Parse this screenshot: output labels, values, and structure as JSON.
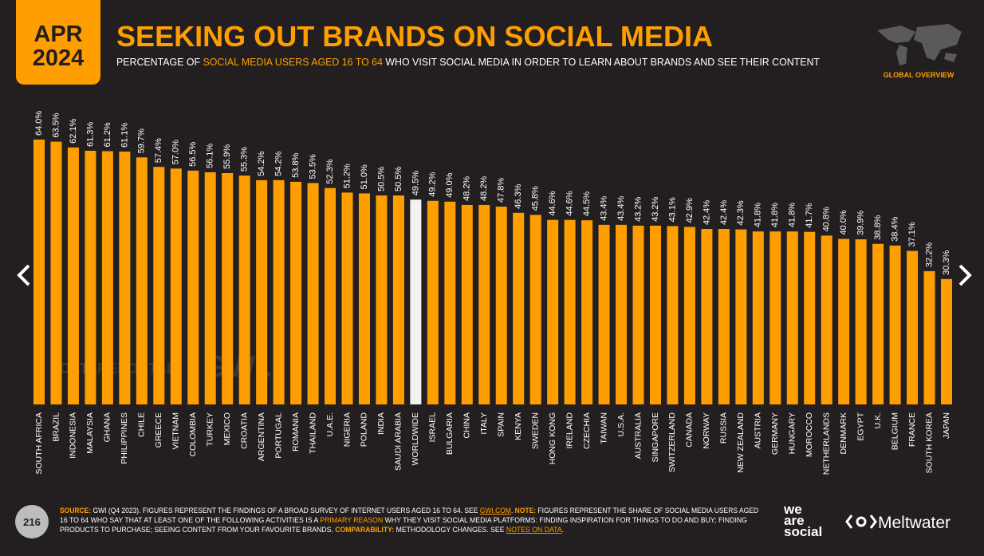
{
  "badge": {
    "month": "APR",
    "year": "2024"
  },
  "global_label": "GLOBAL OVERVIEW",
  "page_number": "216",
  "watermarks": [
    "DATAREPORTAL",
    "GWI."
  ],
  "logos": {
    "wearesocial": [
      "we",
      "are",
      "social"
    ],
    "meltwater": "Meltwater"
  },
  "footer": {
    "lines": [
      [
        {
          "text": "SOURCE:",
          "style": "label"
        },
        {
          "text": " GWI (Q4 2023). FIGURES REPRESENT THE FINDINGS OF A BROAD SURVEY OF INTERNET USERS AGED 16 TO 64. SEE ",
          "style": "plain"
        },
        {
          "text": "GWI.COM",
          "style": "link"
        },
        {
          "text": ". ",
          "style": "plain"
        },
        {
          "text": "NOTE:",
          "style": "label"
        },
        {
          "text": " FIGURES REPRESENT THE SHARE OF SOCIAL MEDIA USERS AGED",
          "style": "plain"
        }
      ],
      [
        {
          "text": "16 TO 64 WHO SAY THAT AT LEAST ONE OF THE FOLLOWING ACTIVITIES IS A ",
          "style": "plain"
        },
        {
          "text": "PRIMARY REASON",
          "style": "highlight"
        },
        {
          "text": " WHY THEY VISIT SOCIAL MEDIA PLATFORMS: FINDING INSPIRATION FOR THINGS TO DO AND BUY; FINDING",
          "style": "plain"
        }
      ],
      [
        {
          "text": "PRODUCTS TO PURCHASE; SEEING CONTENT FROM YOUR FAVOURITE BRANDS. ",
          "style": "plain"
        },
        {
          "text": "COMPARABILITY:",
          "style": "label"
        },
        {
          "text": " METHODOLOGY CHANGES. SEE ",
          "style": "plain"
        },
        {
          "text": "NOTES ON DATA",
          "style": "link"
        },
        {
          "text": ".",
          "style": "plain"
        }
      ]
    ]
  },
  "chart_data": {
    "type": "bar",
    "title": "SEEKING OUT BRANDS ON SOCIAL MEDIA",
    "subtitle": [
      {
        "text": "PERCENTAGE OF ",
        "style": "plain"
      },
      {
        "text": "SOCIAL MEDIA USERS AGED 16 TO 64",
        "style": "highlight"
      },
      {
        "text": " WHO VISIT SOCIAL MEDIA IN ORDER TO LEARN ABOUT BRANDS AND SEE THEIR CONTENT",
        "style": "plain"
      }
    ],
    "categories": [
      "SOUTH AFRICA",
      "BRAZIL",
      "INDONESIA",
      "MALAYSIA",
      "GHANA",
      "PHILIPPINES",
      "CHILE",
      "GREECE",
      "VIETNAM",
      "COLOMBIA",
      "TURKEY",
      "MEXICO",
      "CROATIA",
      "ARGENTINA",
      "PORTUGAL",
      "ROMANIA",
      "THAILAND",
      "U.A.E.",
      "NIGERIA",
      "POLAND",
      "INDIA",
      "SAUDI ARABIA",
      "WORLDWIDE",
      "ISRAEL",
      "BULGARIA",
      "CHINA",
      "ITALY",
      "SPAIN",
      "KENYA",
      "SWEDEN",
      "HONG KONG",
      "IRELAND",
      "CZECHIA",
      "TAIWAN",
      "U.S.A.",
      "AUSTRALIA",
      "SINGAPORE",
      "SWITZERLAND",
      "CANADA",
      "NORWAY",
      "RUSSIA",
      "NEW ZEALAND",
      "AUSTRIA",
      "GERMANY",
      "HUNGARY",
      "MOROCCO",
      "NETHERLANDS",
      "DENMARK",
      "EGYPT",
      "U.K.",
      "BELGIUM",
      "FRANCE",
      "SOUTH KOREA",
      "JAPAN"
    ],
    "values": [
      64.0,
      63.5,
      62.1,
      61.3,
      61.2,
      61.1,
      59.7,
      57.4,
      57.0,
      56.5,
      56.1,
      55.9,
      55.3,
      54.2,
      54.2,
      53.8,
      53.5,
      52.3,
      51.2,
      51.0,
      50.5,
      50.5,
      49.5,
      49.2,
      49.0,
      48.2,
      48.2,
      47.8,
      46.3,
      45.8,
      44.6,
      44.6,
      44.5,
      43.4,
      43.4,
      43.2,
      43.2,
      43.1,
      42.9,
      42.4,
      42.4,
      42.3,
      41.8,
      41.8,
      41.8,
      41.7,
      40.8,
      40.0,
      39.9,
      38.8,
      38.4,
      37.1,
      32.2,
      30.3
    ],
    "value_labels": [
      "64.0%",
      "63.5%",
      "62.1%",
      "61.3%",
      "61.2%",
      "61.1%",
      "59.7%",
      "57.4%",
      "57.0%",
      "56.5%",
      "56.1%",
      "55.9%",
      "55.3%",
      "54.2%",
      "54.2%",
      "53.8%",
      "53.5%",
      "52.3%",
      "51.2%",
      "51.0%",
      "50.5%",
      "50.5%",
      "49.5%",
      "49.2%",
      "49.0%",
      "48.2%",
      "48.2%",
      "47.8%",
      "46.3%",
      "45.8%",
      "44.6%",
      "44.6%",
      "44.5%",
      "43.4%",
      "43.4%",
      "43.2%",
      "43.2%",
      "43.1%",
      "42.9%",
      "42.4%",
      "42.4%",
      "42.3%",
      "41.8%",
      "41.8%",
      "41.8%",
      "41.7%",
      "40.8%",
      "40.0%",
      "39.9%",
      "38.8%",
      "38.4%",
      "37.1%",
      "32.2%",
      "30.3%"
    ],
    "color": "#ff9e00",
    "highlight_color": "#f2f2f2",
    "highlight_index": 22,
    "ylim": [
      0,
      64
    ]
  }
}
